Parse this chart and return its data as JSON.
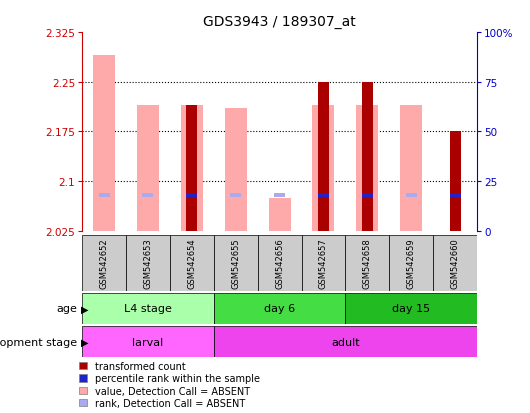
{
  "title": "GDS3943 / 189307_at",
  "samples": [
    "GSM542652",
    "GSM542653",
    "GSM542654",
    "GSM542655",
    "GSM542656",
    "GSM542657",
    "GSM542658",
    "GSM542659",
    "GSM542660"
  ],
  "baseline": 2.025,
  "ylim_left": [
    2.025,
    2.325
  ],
  "ylim_right": [
    0,
    100
  ],
  "yticks_left": [
    2.025,
    2.1,
    2.175,
    2.25,
    2.325
  ],
  "yticks_right": [
    0,
    25,
    50,
    75,
    100
  ],
  "ytick_labels_left": [
    "2.025",
    "2.1",
    "2.175",
    "2.25",
    "2.325"
  ],
  "ytick_labels_right": [
    "0",
    "25",
    "50",
    "75",
    "100%"
  ],
  "pink_values": [
    2.29,
    2.215,
    2.215,
    2.21,
    2.075,
    2.215,
    2.215,
    2.215,
    null
  ],
  "red_values": [
    null,
    null,
    2.215,
    null,
    null,
    2.25,
    2.25,
    null,
    2.175
  ],
  "blue_ranks": [
    18,
    18,
    18,
    18,
    18,
    18,
    18,
    18,
    18
  ],
  "absent_blue": [
    true,
    true,
    false,
    true,
    true,
    false,
    false,
    true,
    false
  ],
  "age_groups": [
    {
      "label": "L4 stage",
      "start": 0,
      "end": 3,
      "color": "#aaffaa"
    },
    {
      "label": "day 6",
      "start": 3,
      "end": 6,
      "color": "#44dd44"
    },
    {
      "label": "day 15",
      "start": 6,
      "end": 9,
      "color": "#22bb22"
    }
  ],
  "dev_groups": [
    {
      "label": "larval",
      "start": 0,
      "end": 3,
      "color": "#ff66ff"
    },
    {
      "label": "adult",
      "start": 3,
      "end": 9,
      "color": "#ee44ee"
    }
  ],
  "age_label": "age",
  "dev_label": "development stage",
  "pink_bar_width": 0.5,
  "red_bar_width": 0.25,
  "blue_bar_width": 0.25,
  "grid_color": "#000000",
  "left_axis_color": "#cc0000",
  "right_axis_color": "#0000cc",
  "background_color": "#ffffff",
  "plot_bg_color": "#ffffff",
  "sample_label_bg": "#cccccc",
  "pink_color": "#ffaaaa",
  "red_color": "#aa0000",
  "blue_color": "#2222cc",
  "light_blue_color": "#aaaaee",
  "legend_items": [
    {
      "label": "transformed count",
      "color": "#aa0000"
    },
    {
      "label": "percentile rank within the sample",
      "color": "#2222cc"
    },
    {
      "label": "value, Detection Call = ABSENT",
      "color": "#ffaaaa"
    },
    {
      "label": "rank, Detection Call = ABSENT",
      "color": "#aaaaee"
    }
  ]
}
